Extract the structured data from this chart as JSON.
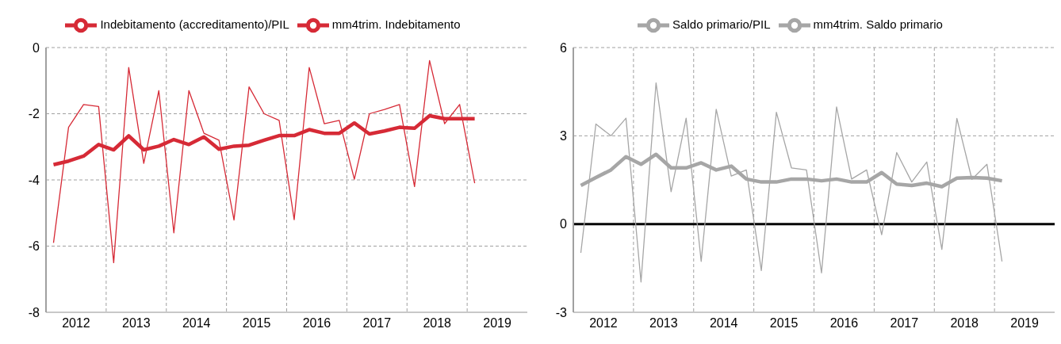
{
  "chart_data": [
    {
      "type": "line",
      "x": [
        2012.125,
        2012.375,
        2012.625,
        2012.875,
        2013.125,
        2013.375,
        2013.625,
        2013.875,
        2014.125,
        2014.375,
        2014.625,
        2014.875,
        2015.125,
        2015.375,
        2015.625,
        2015.875,
        2016.125,
        2016.375,
        2016.625,
        2016.875,
        2017.125,
        2017.375,
        2017.625,
        2017.875,
        2018.125,
        2018.375,
        2018.625,
        2018.875,
        2019.125
      ],
      "series": [
        {
          "name": "Indebitamento (accreditamento)/PIL",
          "color": "#d62a36",
          "values": [
            -5.9,
            -2.41,
            -1.72,
            -1.78,
            -6.5,
            -0.6,
            -3.5,
            -1.3,
            -5.6,
            -1.3,
            -2.59,
            -2.8,
            -5.21,
            -1.19,
            -2.0,
            -2.2,
            -5.2,
            -0.6,
            -2.3,
            -2.2,
            -3.98,
            -2.0,
            -1.87,
            -1.72,
            -4.2,
            -0.39,
            -2.3,
            -1.72,
            -4.1
          ]
        },
        {
          "name": "mm4trim. Indebitamento",
          "color": "#d62a36",
          "values": [
            -3.54,
            -3.43,
            -3.28,
            -2.93,
            -3.09,
            -2.67,
            -3.09,
            -2.98,
            -2.78,
            -2.93,
            -2.7,
            -3.07,
            -2.98,
            -2.95,
            -2.8,
            -2.66,
            -2.66,
            -2.48,
            -2.59,
            -2.59,
            -2.28,
            -2.61,
            -2.52,
            -2.41,
            -2.44,
            -2.06,
            -2.15,
            -2.15,
            -2.15
          ]
        }
      ],
      "xlim": [
        2012,
        2020
      ],
      "xticks": [
        {
          "value": 2012.5,
          "label": "2012"
        },
        {
          "value": 2013,
          "label": null
        },
        {
          "value": 2013.5,
          "label": "2013"
        },
        {
          "value": 2014,
          "label": null
        },
        {
          "value": 2014.5,
          "label": "2014"
        },
        {
          "value": 2015,
          "label": null
        },
        {
          "value": 2015.5,
          "label": "2015"
        },
        {
          "value": 2016,
          "label": null
        },
        {
          "value": 2016.5,
          "label": "2016"
        },
        {
          "value": 2017,
          "label": null
        },
        {
          "value": 2017.5,
          "label": "2017"
        },
        {
          "value": 2018,
          "label": null
        },
        {
          "value": 2018.5,
          "label": "2018"
        },
        {
          "value": 2019,
          "label": null
        },
        {
          "value": 2019.5,
          "label": "2019"
        }
      ],
      "ylim": [
        -8,
        0
      ],
      "yticks": [
        -8,
        -6,
        -4,
        -2,
        0
      ],
      "grid": true,
      "legend": "top",
      "marker": "none",
      "line_style": "solid"
    },
    {
      "type": "line",
      "x": [
        2012.125,
        2012.375,
        2012.625,
        2012.875,
        2013.125,
        2013.375,
        2013.625,
        2013.875,
        2014.125,
        2014.375,
        2014.625,
        2014.875,
        2015.125,
        2015.375,
        2015.625,
        2015.875,
        2016.125,
        2016.375,
        2016.625,
        2016.875,
        2017.125,
        2017.375,
        2017.625,
        2017.875,
        2018.125,
        2018.375,
        2018.625,
        2018.875,
        2019.125
      ],
      "series": [
        {
          "name": "Saldo primario/PIL",
          "color": "#a6a6a6",
          "values": [
            -0.98,
            3.4,
            3.0,
            3.6,
            -1.97,
            4.8,
            1.1,
            3.6,
            -1.27,
            3.9,
            1.63,
            1.84,
            -1.58,
            3.8,
            1.91,
            1.84,
            -1.66,
            3.98,
            1.53,
            1.84,
            -0.36,
            2.43,
            1.43,
            2.11,
            -0.86,
            3.59,
            1.52,
            2.03,
            -1.27
          ]
        },
        {
          "name": "mm4trim. Saldo primario",
          "color": "#a6a6a6",
          "values": [
            1.31,
            1.58,
            1.84,
            2.29,
            2.03,
            2.37,
            1.91,
            1.91,
            2.08,
            1.84,
            1.97,
            1.53,
            1.43,
            1.43,
            1.53,
            1.53,
            1.47,
            1.53,
            1.43,
            1.43,
            1.75,
            1.36,
            1.31,
            1.39,
            1.27,
            1.56,
            1.58,
            1.56,
            1.47
          ]
        }
      ],
      "xlim": [
        2012,
        2020
      ],
      "xticks": [
        {
          "value": 2012.5,
          "label": "2012"
        },
        {
          "value": 2013,
          "label": null
        },
        {
          "value": 2013.5,
          "label": "2013"
        },
        {
          "value": 2014,
          "label": null
        },
        {
          "value": 2014.5,
          "label": "2014"
        },
        {
          "value": 2015,
          "label": null
        },
        {
          "value": 2015.5,
          "label": "2015"
        },
        {
          "value": 2016,
          "label": null
        },
        {
          "value": 2016.5,
          "label": "2016"
        },
        {
          "value": 2017,
          "label": null
        },
        {
          "value": 2017.5,
          "label": "2017"
        },
        {
          "value": 2018,
          "label": null
        },
        {
          "value": 2018.5,
          "label": "2018"
        },
        {
          "value": 2019,
          "label": null
        },
        {
          "value": 2019.5,
          "label": "2019"
        }
      ],
      "ylim": [
        -3,
        6
      ],
      "yticks": [
        -3,
        0,
        3,
        6
      ],
      "grid": true,
      "legend": "top",
      "marker": "none",
      "line_style": "solid",
      "ref_lines": [
        {
          "axis": "y",
          "value": 0,
          "color": "#000000"
        }
      ]
    }
  ]
}
